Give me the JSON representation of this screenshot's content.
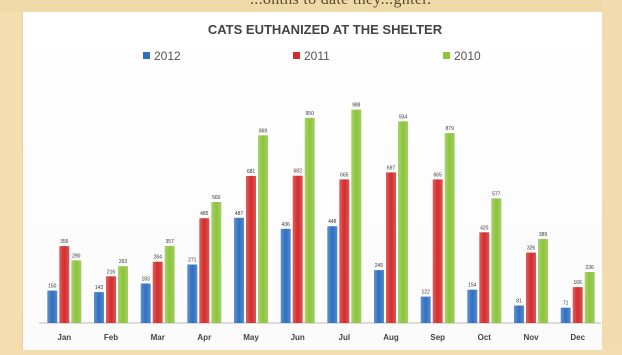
{
  "page": {
    "partial_top_text": "...onths to date they...ghter."
  },
  "chart_data": {
    "type": "bar",
    "title": "CATS EUTHANIZED AT THE SHELTER",
    "xlabel": "",
    "ylabel": "",
    "ylim": [
      0,
      1000
    ],
    "grid": false,
    "legend_position": "top",
    "categories": [
      "Jan",
      "Feb",
      "Mar",
      "Apr",
      "May",
      "Jun",
      "Jul",
      "Aug",
      "Sep",
      "Oct",
      "Nov",
      "Dec"
    ],
    "series": [
      {
        "name": "2012",
        "color": "#2e6fc0",
        "values": [
          150,
          143,
          183,
          271,
          487,
          436,
          448,
          245,
          122,
          154,
          81,
          71
        ]
      },
      {
        "name": "2011",
        "color": "#d42c2c",
        "values": [
          356,
          216,
          284,
          485,
          681,
          682,
          665,
          697,
          665,
          420,
          326,
          166
        ]
      },
      {
        "name": "2010",
        "color": "#8cc43c",
        "values": [
          290,
          263,
          357,
          560,
          869,
          950,
          988,
          934,
          879,
          577,
          389,
          236
        ]
      }
    ]
  }
}
